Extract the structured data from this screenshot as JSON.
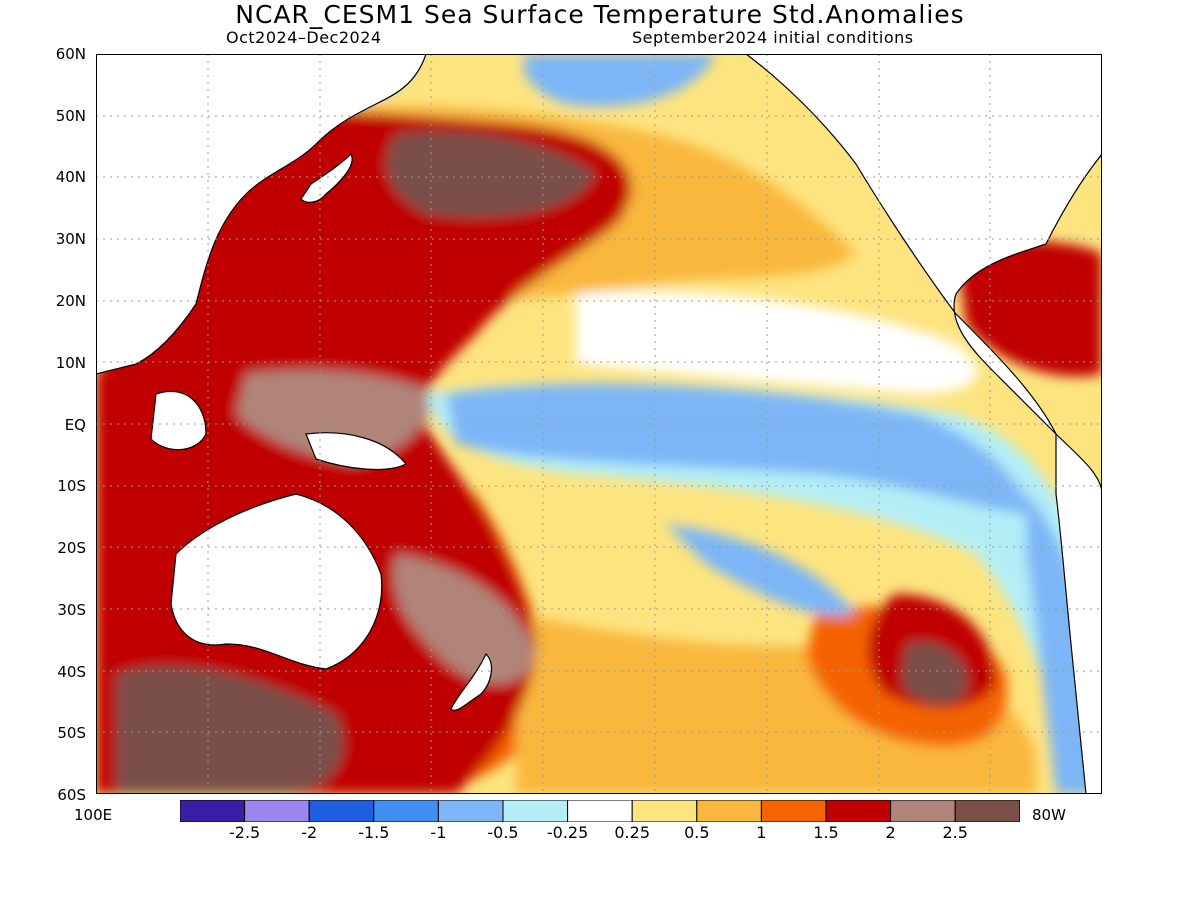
{
  "title": "NCAR_CESM1 Sea Surface Temperature Std.Anomalies",
  "subtitle_left": "Oct2024–Dec2024",
  "subtitle_right": "September2024 initial conditions",
  "lat_labels": [
    "60N",
    "50N",
    "40N",
    "30N",
    "20N",
    "10N",
    "EQ",
    "10S",
    "20S",
    "30S",
    "40S",
    "50S",
    "60S"
  ],
  "lon_labels": {
    "left": "100E",
    "right": "80W"
  },
  "colorbar": {
    "labels": [
      "-2.5",
      "-2",
      "-1.5",
      "-1",
      "-0.5",
      "-0.25",
      "0.25",
      "0.5",
      "1",
      "1.5",
      "2",
      "2.5"
    ],
    "colors": [
      "#3a1fa6",
      "#9b85f0",
      "#1f5fdf",
      "#3f8ef0",
      "#7db6f6",
      "#b3eef6",
      "#ffffff",
      "#fde47f",
      "#f9b73d",
      "#f56400",
      "#c00000",
      "#b08479",
      "#7a5048"
    ]
  },
  "map_extent": {
    "lon_min": 100,
    "lon_max": 280,
    "lat_min": -60,
    "lat_max": 60
  }
}
